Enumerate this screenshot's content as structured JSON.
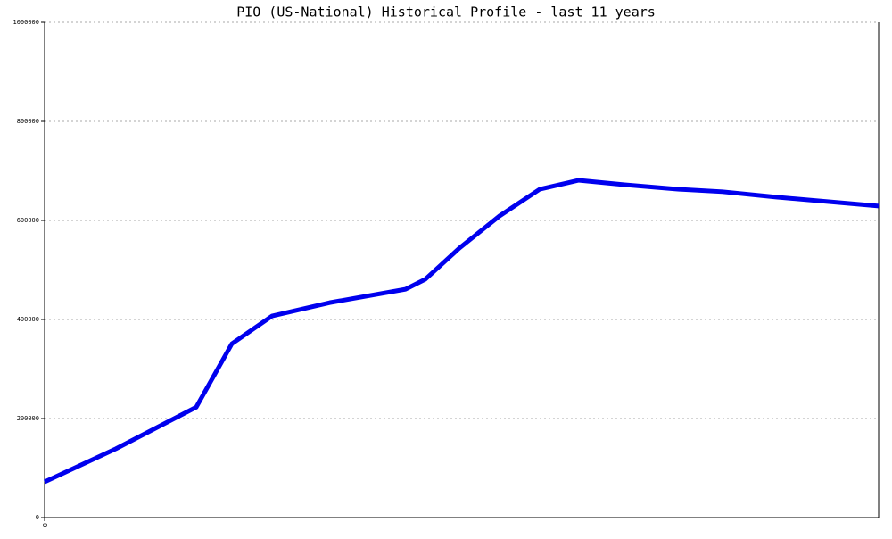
{
  "chart_data": {
    "type": "line",
    "title": "PIO (US-National) Historical Profile - last 11 years",
    "x": [
      0,
      0.94,
      2.0,
      2.47,
      3.0,
      3.76,
      4.76,
      5.02,
      5.47,
      6.0,
      6.53,
      7.04,
      7.65,
      8.35,
      8.94,
      9.65,
      11
    ],
    "series": [
      {
        "name": "PIO",
        "color": "#0000ee",
        "values": [
          72000,
          139000,
          223000,
          351000,
          407000,
          434000,
          461000,
          481000,
          544000,
          609000,
          663000,
          681000,
          672000,
          663000,
          658000,
          647000,
          629000
        ]
      }
    ],
    "xlim": [
      0,
      11
    ],
    "xticks": [
      0
    ],
    "ylim": [
      0,
      1000000
    ],
    "yticks": [
      0,
      200000,
      400000,
      600000,
      800000,
      1000000
    ],
    "grid": true
  }
}
